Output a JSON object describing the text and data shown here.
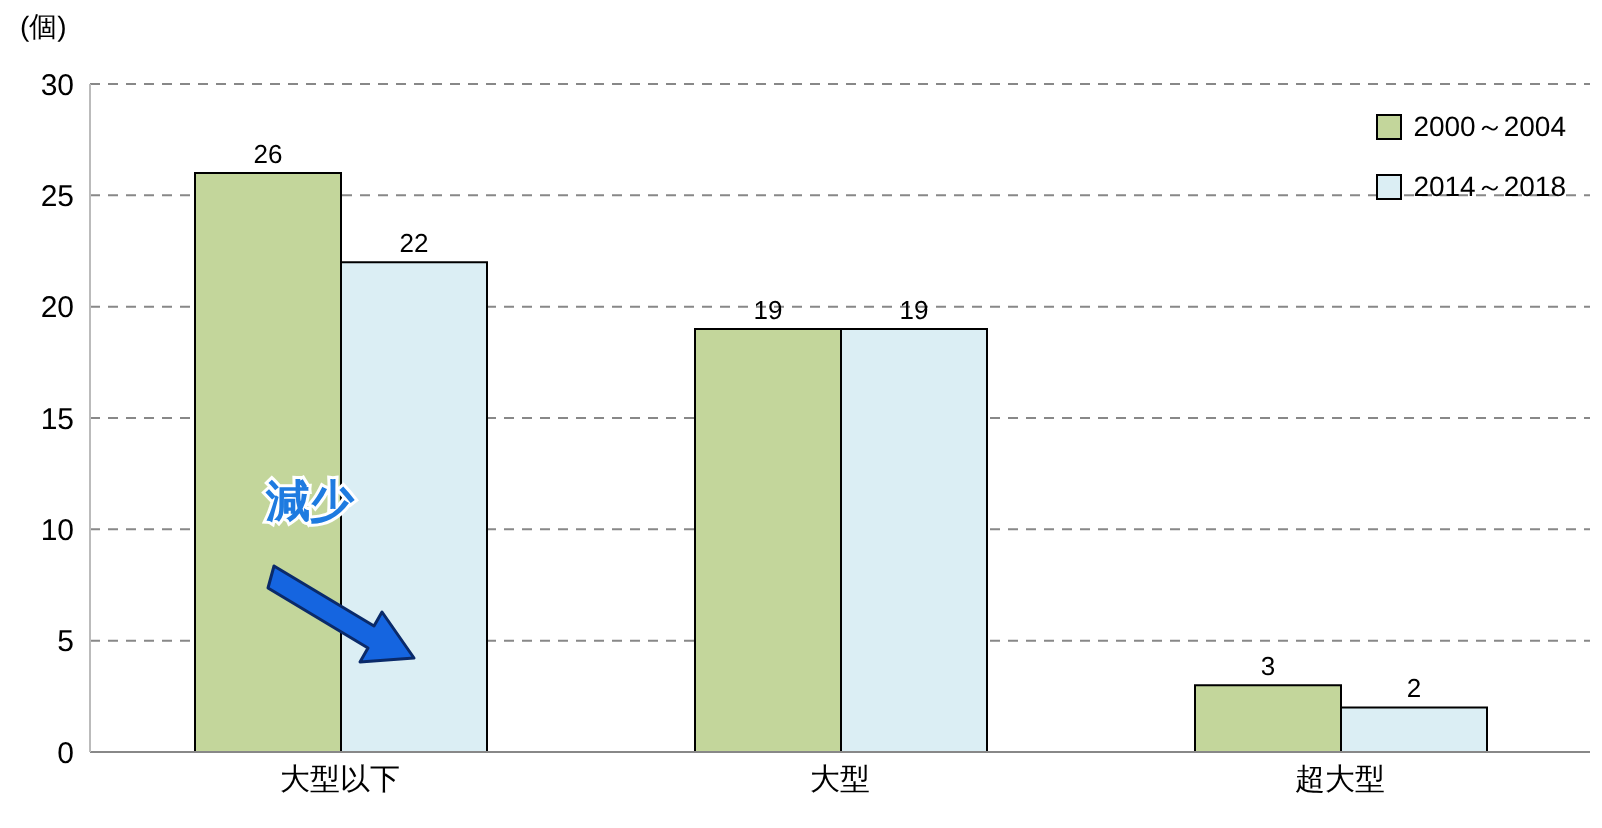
{
  "chart_data": {
    "type": "bar",
    "ylabel": "(個)",
    "categories": [
      "大型以下",
      "大型",
      "超大型"
    ],
    "series": [
      {
        "name": "2000～2004",
        "color": "#c3d69b",
        "values": [
          26,
          19,
          3
        ]
      },
      {
        "name": "2014～2018",
        "color": "#dbeef4",
        "values": [
          22,
          19,
          2
        ]
      }
    ],
    "ylim": [
      0,
      30
    ],
    "yticks": [
      0,
      5,
      10,
      15,
      20,
      25,
      30
    ],
    "grid": "y",
    "legend": "top right",
    "data_labels": true,
    "annotations": [
      "減少"
    ]
  }
}
